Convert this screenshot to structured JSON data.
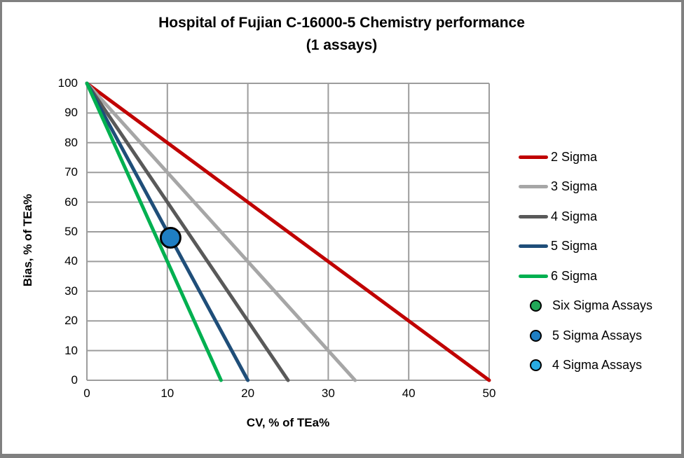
{
  "frame": {
    "border_color": "#808080",
    "background": "#FFFFFF"
  },
  "title": {
    "line1": "Hospital of Fujian C-16000-5 Chemistry performance",
    "line2": "(1 assays)"
  },
  "chart_data": {
    "type": "line",
    "title": "Hospital of Fujian C-16000-5 Chemistry performance (1 assays)",
    "xlabel": "CV, % of TEa%",
    "ylabel": "Bias, % of TEa%",
    "xlim": [
      0,
      50
    ],
    "ylim": [
      0,
      100
    ],
    "xticks": [
      0,
      10,
      20,
      30,
      40,
      50
    ],
    "yticks": [
      0,
      10,
      20,
      30,
      40,
      50,
      60,
      70,
      80,
      90,
      100
    ],
    "grid": true,
    "gridline_color": "#9D9D9D",
    "axis_color": "#9D9D9D",
    "legend_position": "right",
    "series": [
      {
        "name": "2 Sigma",
        "color": "#C00000",
        "points": [
          [
            0,
            100
          ],
          [
            50,
            0
          ]
        ]
      },
      {
        "name": "3 Sigma",
        "color": "#A6A6A6",
        "points": [
          [
            0,
            100
          ],
          [
            33.33,
            0
          ]
        ]
      },
      {
        "name": "4 Sigma",
        "color": "#595959",
        "points": [
          [
            0,
            100
          ],
          [
            25,
            0
          ]
        ]
      },
      {
        "name": "5 Sigma",
        "color": "#1F4E79",
        "points": [
          [
            0,
            100
          ],
          [
            20,
            0
          ]
        ]
      },
      {
        "name": "6 Sigma",
        "color": "#00B050",
        "points": [
          [
            0,
            100
          ],
          [
            16.67,
            0
          ]
        ]
      }
    ],
    "scatter_series": [
      {
        "name": "Six Sigma Assays",
        "color": "#21A858",
        "points": []
      },
      {
        "name": "5 Sigma Assays",
        "color": "#1F7EC3",
        "points": [
          [
            10.4,
            48
          ]
        ]
      },
      {
        "name": "4 Sigma Assays",
        "color": "#29ABE2",
        "points": []
      }
    ],
    "marker_style": {
      "stroke": "#000000",
      "stroke_width": 3,
      "radius": 14
    }
  }
}
